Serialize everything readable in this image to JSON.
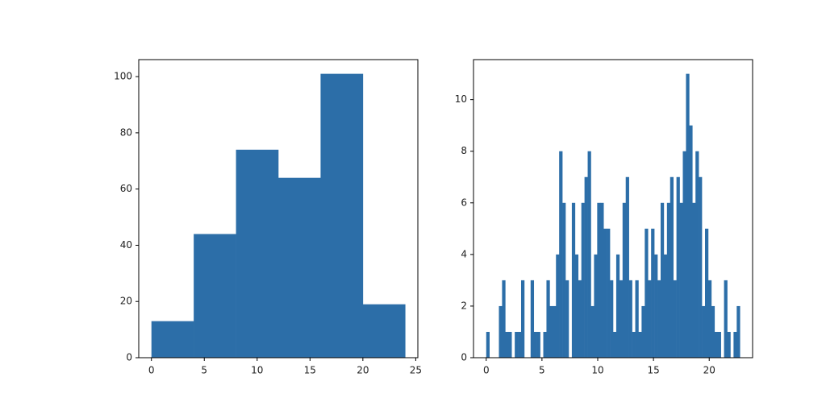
{
  "chart_data": [
    {
      "type": "histogram",
      "color": "#2c6ea8",
      "bins": [
        0,
        4,
        8,
        12,
        16,
        20,
        24
      ],
      "values": [
        13,
        44,
        74,
        64,
        101,
        19
      ],
      "xlim": [
        -1.2,
        25.2
      ],
      "ylim": [
        0,
        106.05
      ],
      "xticks": [
        0,
        5,
        10,
        15,
        20,
        25
      ],
      "yticks": [
        0,
        20,
        40,
        60,
        80,
        100
      ]
    },
    {
      "type": "histogram",
      "color": "#2c6ea8",
      "bins": [
        0,
        0.284375,
        0.56875,
        0.853125,
        1.1375,
        1.421875,
        1.70625,
        1.990625,
        2.275,
        2.559375,
        2.84375,
        3.128125,
        3.4125,
        3.696875,
        3.98125,
        4.265625,
        4.55,
        4.834375,
        5.11875,
        5.403125,
        5.6875,
        5.971875,
        6.25625,
        6.540625,
        6.825,
        7.109375,
        7.39375,
        7.678125,
        7.9625,
        8.246875,
        8.53125,
        8.815625,
        9.1,
        9.384375,
        9.66875,
        9.953125,
        10.2375,
        10.521875,
        10.80625,
        11.090625,
        11.375,
        11.659375,
        11.94375,
        12.228125,
        12.5125,
        12.796875,
        13.08125,
        13.365625,
        13.65,
        13.934375,
        14.21875,
        14.503125,
        14.7875,
        15.071875,
        15.35625,
        15.640625,
        15.925,
        16.209375,
        16.49375,
        16.778125,
        17.0625,
        17.346875,
        17.63125,
        17.915625,
        18.2,
        18.484375,
        18.76875,
        19.053125,
        19.3375,
        19.621875,
        19.90625,
        20.190625,
        20.475,
        20.759375,
        21.04375,
        21.328125,
        21.6125,
        21.896875,
        22.18125,
        22.465625,
        22.75
      ],
      "values": [
        1,
        0,
        0,
        0,
        2,
        3,
        1,
        1,
        0,
        1,
        1,
        3,
        0,
        0,
        3,
        1,
        1,
        0,
        1,
        3,
        2,
        2,
        4,
        8,
        6,
        3,
        0,
        6,
        4,
        3,
        6,
        7,
        8,
        2,
        4,
        6,
        6,
        5,
        5,
        3,
        1,
        4,
        3,
        6,
        7,
        3,
        1,
        3,
        1,
        2,
        5,
        3,
        5,
        4,
        3,
        6,
        4,
        6,
        7,
        3,
        7,
        6,
        8,
        11,
        9,
        6,
        8,
        7,
        2,
        5,
        3,
        2,
        1,
        1,
        0,
        3,
        1,
        0,
        1,
        2
      ],
      "xlim": [
        -1.14,
        23.89
      ],
      "ylim": [
        0,
        11.55
      ],
      "xticks": [
        0,
        5,
        10,
        15,
        20
      ],
      "yticks": [
        0,
        2,
        4,
        6,
        8,
        10
      ]
    }
  ]
}
